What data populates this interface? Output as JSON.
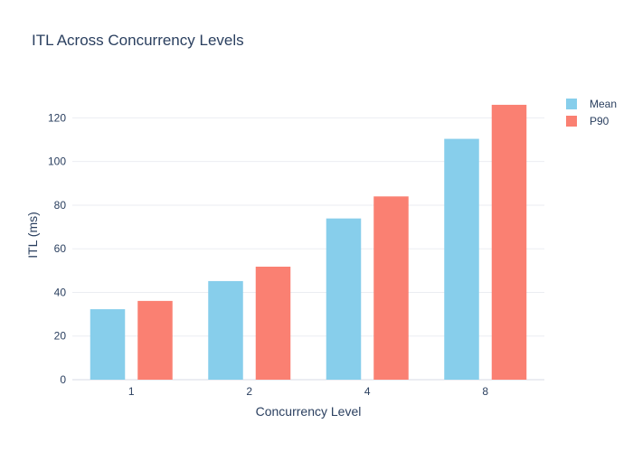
{
  "chart_data": {
    "type": "bar",
    "title": "ITL Across Concurrency Levels",
    "xlabel": "Concurrency Level",
    "ylabel": "ITL (ms)",
    "categories": [
      "1",
      "2",
      "4",
      "8"
    ],
    "series": [
      {
        "name": "Mean",
        "color": "#87ceeb",
        "values": [
          32.3,
          45.2,
          73.9,
          110.4
        ]
      },
      {
        "name": "P90",
        "color": "#fa8072",
        "values": [
          36.1,
          51.8,
          84.0,
          126.0
        ]
      }
    ],
    "yticks": [
      0,
      20,
      40,
      60,
      80,
      100,
      120
    ],
    "ylim": [
      0,
      132.6
    ],
    "grid": true,
    "legend": "top-right"
  }
}
